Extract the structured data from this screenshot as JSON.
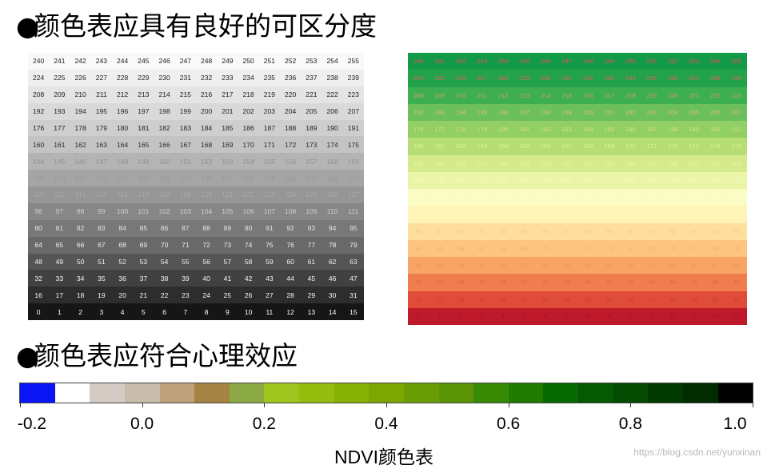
{
  "bullet": "●",
  "heading1": "颜色表应具有良好的可区分度",
  "heading2": "颜色表应符合心理效应",
  "gray_table": {
    "columns": 16,
    "rows": [
      [
        "240",
        "241",
        "242",
        "243",
        "244",
        "245",
        "246",
        "247",
        "248",
        "249",
        "250",
        "251",
        "252",
        "253",
        "254",
        "255"
      ],
      [
        "224",
        "225",
        "226",
        "227",
        "228",
        "229",
        "230",
        "231",
        "232",
        "233",
        "234",
        "235",
        "236",
        "237",
        "238",
        "239"
      ],
      [
        "208",
        "209",
        "210",
        "211",
        "212",
        "213",
        "214",
        "215",
        "216",
        "217",
        "218",
        "219",
        "220",
        "221",
        "222",
        "223"
      ],
      [
        "192",
        "193",
        "194",
        "195",
        "196",
        "197",
        "198",
        "199",
        "200",
        "201",
        "202",
        "203",
        "204",
        "205",
        "206",
        "207"
      ],
      [
        "176",
        "177",
        "178",
        "179",
        "180",
        "181",
        "182",
        "183",
        "184",
        "185",
        "186",
        "187",
        "188",
        "189",
        "190",
        "191"
      ],
      [
        "160",
        "161",
        "162",
        "163",
        "164",
        "165",
        "166",
        "167",
        "168",
        "169",
        "170",
        "171",
        "172",
        "173",
        "174",
        "175"
      ],
      [
        "144",
        "145",
        "146",
        "147",
        "148",
        "149",
        "150",
        "151",
        "152",
        "153",
        "154",
        "155",
        "156",
        "157",
        "158",
        "159"
      ],
      [
        "128",
        "129",
        "130",
        "131",
        "132",
        "133",
        "134",
        "135",
        "136",
        "137",
        "138",
        "139",
        "140",
        "141",
        "142",
        "143"
      ],
      [
        "112",
        "113",
        "114",
        "115",
        "116",
        "117",
        "118",
        "119",
        "120",
        "121",
        "122",
        "123",
        "124",
        "125",
        "126",
        "127"
      ],
      [
        "96",
        "97",
        "98",
        "99",
        "100",
        "101",
        "102",
        "103",
        "104",
        "105",
        "106",
        "107",
        "108",
        "109",
        "110",
        "111"
      ],
      [
        "80",
        "81",
        "82",
        "83",
        "84",
        "85",
        "86",
        "87",
        "88",
        "89",
        "90",
        "91",
        "92",
        "93",
        "94",
        "95"
      ],
      [
        "64",
        "65",
        "66",
        "67",
        "68",
        "69",
        "70",
        "71",
        "72",
        "73",
        "74",
        "75",
        "76",
        "77",
        "78",
        "79"
      ],
      [
        "48",
        "49",
        "50",
        "51",
        "52",
        "53",
        "54",
        "55",
        "56",
        "57",
        "58",
        "59",
        "60",
        "61",
        "62",
        "63"
      ],
      [
        "32",
        "33",
        "34",
        "35",
        "36",
        "37",
        "38",
        "39",
        "40",
        "41",
        "42",
        "43",
        "44",
        "45",
        "46",
        "47"
      ],
      [
        "16",
        "17",
        "18",
        "19",
        "20",
        "21",
        "22",
        "23",
        "24",
        "25",
        "26",
        "27",
        "28",
        "29",
        "30",
        "31"
      ],
      [
        "0",
        "1",
        "2",
        "3",
        "4",
        "5",
        "6",
        "7",
        "8",
        "9",
        "10",
        "11",
        "12",
        "13",
        "14",
        "15"
      ]
    ],
    "row_colors": [
      "#f9f9f9",
      "#efefef",
      "#e4e4e4",
      "#d9d9d9",
      "#cecece",
      "#c3c3c3",
      "#b4b4b4",
      "#a5a5a5",
      "#969696",
      "#878787",
      "#787878",
      "#696969",
      "#555555",
      "#414141",
      "#2d2d2d",
      "#161616"
    ],
    "text_colors": [
      "#222222",
      "#222222",
      "#222222",
      "#222222",
      "#222222",
      "#2a2a2a",
      "#909090",
      "#9a9a9a",
      "#a8a8a8",
      "#cfcfcf",
      "#e4e4e4",
      "#eeeeee",
      "#f2f2f2",
      "#f5f5f5",
      "#f8f8f8",
      "#ffffff"
    ]
  },
  "color_table": {
    "columns": 16,
    "rows": [
      [
        "240",
        "241",
        "242",
        "243",
        "244",
        "245",
        "246",
        "247",
        "248",
        "249",
        "250",
        "251",
        "252",
        "253",
        "254",
        "255"
      ],
      [
        "224",
        "225",
        "226",
        "227",
        "228",
        "229",
        "230",
        "231",
        "232",
        "233",
        "234",
        "235",
        "236",
        "237",
        "238",
        "239"
      ],
      [
        "208",
        "209",
        "210",
        "211",
        "212",
        "213",
        "214",
        "215",
        "216",
        "217",
        "218",
        "219",
        "220",
        "221",
        "222",
        "223"
      ],
      [
        "192",
        "193",
        "194",
        "195",
        "196",
        "197",
        "198",
        "199",
        "200",
        "201",
        "202",
        "203",
        "204",
        "205",
        "206",
        "207"
      ],
      [
        "176",
        "177",
        "178",
        "179",
        "180",
        "181",
        "182",
        "183",
        "184",
        "185",
        "186",
        "187",
        "188",
        "189",
        "190",
        "191"
      ],
      [
        "160",
        "161",
        "162",
        "163",
        "164",
        "165",
        "166",
        "167",
        "168",
        "169",
        "170",
        "171",
        "172",
        "173",
        "174",
        "175"
      ],
      [
        "144",
        "145",
        "146",
        "147",
        "148",
        "149",
        "150",
        "151",
        "152",
        "153",
        "154",
        "155",
        "156",
        "157",
        "158",
        "159"
      ],
      [
        "128",
        "129",
        "130",
        "131",
        "132",
        "133",
        "134",
        "135",
        "136",
        "137",
        "138",
        "139",
        "140",
        "141",
        "142",
        "143"
      ],
      [
        "112",
        "113",
        "114",
        "115",
        "116",
        "117",
        "118",
        "119",
        "120",
        "121",
        "122",
        "123",
        "124",
        "125",
        "126",
        "127"
      ],
      [
        "96",
        "97",
        "98",
        "99",
        "100",
        "101",
        "102",
        "103",
        "104",
        "105",
        "106",
        "107",
        "108",
        "109",
        "110",
        "111"
      ],
      [
        "80",
        "81",
        "82",
        "83",
        "84",
        "85",
        "86",
        "87",
        "88",
        "89",
        "90",
        "91",
        "92",
        "93",
        "94",
        "95"
      ],
      [
        "64",
        "65",
        "66",
        "67",
        "68",
        "69",
        "70",
        "71",
        "72",
        "73",
        "74",
        "75",
        "76",
        "77",
        "78",
        "79"
      ],
      [
        "48",
        "49",
        "50",
        "51",
        "52",
        "53",
        "54",
        "55",
        "56",
        "57",
        "58",
        "59",
        "60",
        "61",
        "62",
        "63"
      ],
      [
        "32",
        "33",
        "34",
        "35",
        "36",
        "37",
        "38",
        "39",
        "40",
        "41",
        "42",
        "43",
        "44",
        "45",
        "46",
        "47"
      ],
      [
        "16",
        "17",
        "18",
        "19",
        "20",
        "21",
        "22",
        "23",
        "24",
        "25",
        "26",
        "27",
        "28",
        "29",
        "30",
        "31"
      ],
      [
        "0",
        "1",
        "2",
        "3",
        "4",
        "5",
        "6",
        "7",
        "8",
        "9",
        "10",
        "11",
        "12",
        "13",
        "14",
        "15"
      ]
    ],
    "row_colors": [
      "#139a48",
      "#22a34b",
      "#3eaf50",
      "#6cc05b",
      "#92cf64",
      "#b6de74",
      "#d4ea8b",
      "#ebf5a8",
      "#fbfcc4",
      "#fef4b5",
      "#fdde9d",
      "#fcc47f",
      "#f8a465",
      "#f07d4e",
      "#df4c37",
      "#bf1a2b"
    ],
    "text_colors": [
      "#e55050",
      "#e06060",
      "#d5a060",
      "#d8c070",
      "#d8e080",
      "#e0f090",
      "#eaf5a8",
      "#f3f9c2",
      "#fdfdd2",
      "#fff7c5",
      "#f7cc85",
      "#f3b070",
      "#ef9058",
      "#e86545",
      "#cf3d30",
      "#a81225"
    ]
  },
  "colorbar": {
    "segment_colors": [
      "#0a14f5",
      "#ffffff",
      "#d4cbc2",
      "#c7bbab",
      "#bfa27c",
      "#a58345",
      "#8ba945",
      "#a0c51c",
      "#95bd0d",
      "#88b203",
      "#7da602",
      "#699d03",
      "#5a9305",
      "#388a05",
      "#1f7c00",
      "#076a00",
      "#055900",
      "#044a00",
      "#023b00",
      "#012c00",
      "#000000"
    ],
    "ticks": [
      "-0.2",
      "0.0",
      "0.2",
      "0.4",
      "0.6",
      "0.8",
      "1.0"
    ]
  },
  "caption": "NDVI颜色表",
  "watermark": "https://blog.csdn.net/yunxinan"
}
